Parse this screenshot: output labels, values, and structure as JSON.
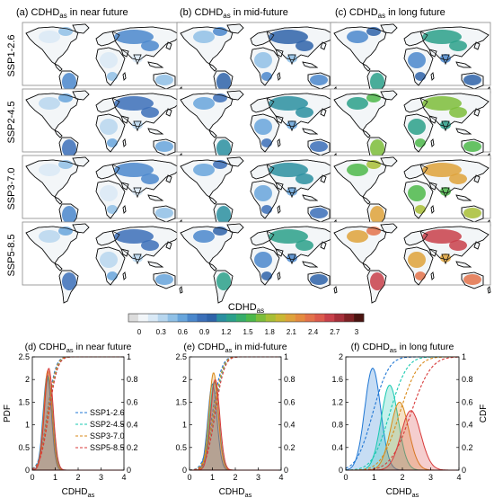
{
  "columns": [
    {
      "prefix": "(a) CDHD",
      "sub": "as",
      "suffix": " in near future"
    },
    {
      "prefix": "(b) CDHD",
      "sub": "as",
      "suffix": " in mid-future"
    },
    {
      "prefix": "(c) CDHD",
      "sub": "as",
      "suffix": " in long future"
    }
  ],
  "rows": [
    "SSP1-2.6",
    "SSP2-4.5",
    "SSP3-7.0",
    "SSP5-8.5"
  ],
  "colorbar": {
    "label_main": "CDHD",
    "label_sub": "as",
    "ticks": [
      "0",
      "0.3",
      "0.6",
      "0.9",
      "1.2",
      "1.5",
      "1.8",
      "2.1",
      "2.4",
      "2.7",
      "3"
    ],
    "colors": [
      "#dcdcdc",
      "#f2f6f9",
      "#d9e9f6",
      "#b7d6ee",
      "#8fc0e6",
      "#67a5dc",
      "#4a87cc",
      "#3b6fb8",
      "#2e63a9",
      "#2a8fa0",
      "#2aa08a",
      "#36ad6a",
      "#4cb84a",
      "#7dbd3a",
      "#a8be35",
      "#c9b733",
      "#dea23a",
      "#e48a3f",
      "#e3724a",
      "#dc5a4c",
      "#c8404a",
      "#a62f3a",
      "#7e2024",
      "#4a1310"
    ]
  },
  "maps": {
    "near": {
      "ssp126": 0.55,
      "ssp245": 0.6,
      "ssp370": 0.55,
      "ssp585": 0.6
    },
    "mid": {
      "ssp126": 0.75,
      "ssp245": 0.9,
      "ssp370": 0.95,
      "ssp585": 1.05
    },
    "long": {
      "ssp126": 1.0,
      "ssp245": 1.5,
      "ssp370": 1.85,
      "ssp585": 2.3
    }
  },
  "chart_data": [
    {
      "type": "line",
      "title_prefix": "(d) CDHD",
      "title_sub": "as",
      "title_suffix": " in near future",
      "xlabel_main": "CDHD",
      "xlabel_sub": "as",
      "ylabel_left": "PDF",
      "ylabel_right": "",
      "xlim": [
        0,
        4
      ],
      "ylim_left": [
        0,
        2.5
      ],
      "ylim_right": [
        0,
        1
      ],
      "xticks": [
        "0",
        "1",
        "2",
        "3",
        "4"
      ],
      "yticks_left": [
        "0",
        "0.5",
        "1",
        "1.5",
        "2",
        "2.5"
      ],
      "yticks_right": [
        "0",
        "0.2",
        "0.4",
        "0.6",
        "0.8",
        "1"
      ],
      "legend": [
        "SSP1-2.6",
        "SSP2-4.5",
        "SSP3-7.0",
        "SSP5-8.5"
      ],
      "series": [
        {
          "name": "SSP1-2.6",
          "color": "#1f77d4",
          "pdf_mean": 0.65,
          "pdf_sd": 0.18,
          "peak": 2.1
        },
        {
          "name": "SSP2-4.5",
          "color": "#17c9b0",
          "pdf_mean": 0.7,
          "pdf_sd": 0.19,
          "peak": 2.05
        },
        {
          "name": "SSP3-7.0",
          "color": "#d98a1a",
          "pdf_mean": 0.68,
          "pdf_sd": 0.18,
          "peak": 2.2
        },
        {
          "name": "SSP5-8.5",
          "color": "#d83a3a",
          "pdf_mean": 0.72,
          "pdf_sd": 0.19,
          "peak": 2.25
        }
      ]
    },
    {
      "type": "line",
      "title_prefix": "(e) CDHD",
      "title_sub": "as",
      "title_suffix": " in mid-future",
      "xlabel_main": "CDHD",
      "xlabel_sub": "as",
      "ylabel_left": "",
      "ylabel_right": "",
      "xlim": [
        0,
        4
      ],
      "ylim_left": [
        0,
        2.5
      ],
      "ylim_right": [
        0,
        1
      ],
      "xticks": [
        "0",
        "1",
        "2",
        "3",
        "4"
      ],
      "yticks_left": [
        "0",
        "0.5",
        "1",
        "1.5",
        "2",
        "2.5"
      ],
      "yticks_right": [
        "0",
        "0.2",
        "0.4",
        "0.6",
        "0.8",
        "1"
      ],
      "series": [
        {
          "name": "SSP1-2.6",
          "color": "#1f77d4",
          "pdf_mean": 1.0,
          "pdf_sd": 0.2,
          "peak": 1.9
        },
        {
          "name": "SSP2-4.5",
          "color": "#17c9b0",
          "pdf_mean": 1.08,
          "pdf_sd": 0.2,
          "peak": 1.95
        },
        {
          "name": "SSP3-7.0",
          "color": "#d98a1a",
          "pdf_mean": 1.05,
          "pdf_sd": 0.2,
          "peak": 2.15
        },
        {
          "name": "SSP5-8.5",
          "color": "#d83a3a",
          "pdf_mean": 1.12,
          "pdf_sd": 0.2,
          "peak": 2.0
        }
      ]
    },
    {
      "type": "line",
      "title_prefix": "(f) CDHD",
      "title_sub": "as",
      "title_suffix": " in long future",
      "xlabel_main": "CDHD",
      "xlabel_sub": "as",
      "ylabel_left": "",
      "ylabel_right": "CDF",
      "xlim": [
        0,
        4
      ],
      "ylim_left": [
        0,
        2
      ],
      "ylim_right": [
        0,
        1
      ],
      "xticks": [
        "0",
        "1",
        "2",
        "3",
        "4"
      ],
      "yticks_left": [
        "0",
        "0.4",
        "0.8",
        "1.2",
        "1.6",
        "2"
      ],
      "yticks_right": [
        "0",
        "0.2",
        "0.4",
        "0.6",
        "0.8",
        "1"
      ],
      "series": [
        {
          "name": "SSP1-2.6",
          "color": "#1f77d4",
          "pdf_mean": 0.95,
          "pdf_sd": 0.28,
          "peak": 1.8
        },
        {
          "name": "SSP2-4.5",
          "color": "#17c9b0",
          "pdf_mean": 1.55,
          "pdf_sd": 0.3,
          "peak": 1.5
        },
        {
          "name": "SSP3-7.0",
          "color": "#d98a1a",
          "pdf_mean": 1.9,
          "pdf_sd": 0.32,
          "peak": 1.2
        },
        {
          "name": "SSP5-8.5",
          "color": "#d83a3a",
          "pdf_mean": 2.3,
          "pdf_sd": 0.35,
          "peak": 1.05
        }
      ]
    }
  ]
}
